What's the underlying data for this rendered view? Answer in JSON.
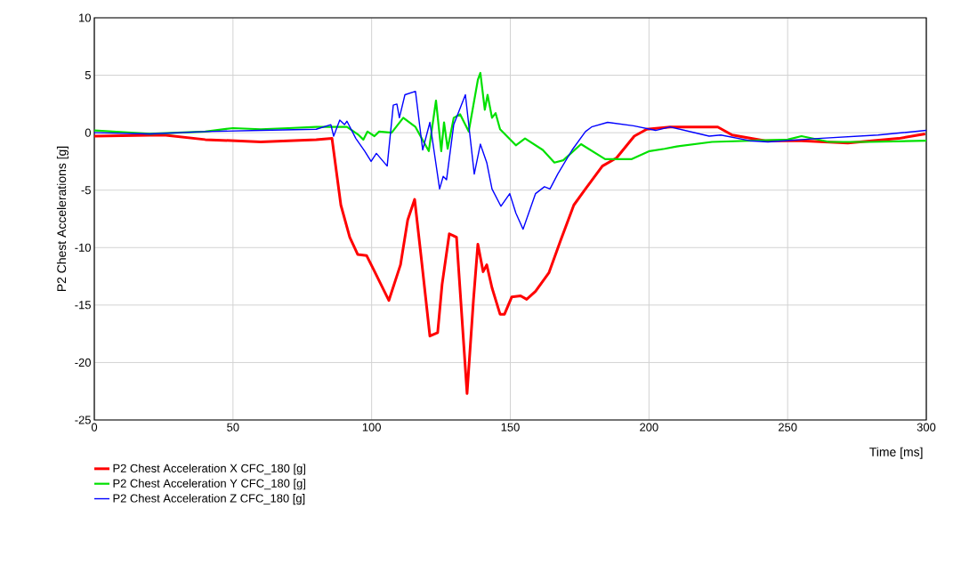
{
  "chart_data": {
    "type": "line",
    "xlabel": "Time [ms]",
    "ylabel": "P2 Chest Accelerations [g]",
    "xlim": [
      0,
      300
    ],
    "ylim": [
      -25,
      10
    ],
    "xticks": [
      0,
      50,
      100,
      150,
      200,
      250,
      300
    ],
    "yticks": [
      -25,
      -20,
      -15,
      -10,
      -5,
      0,
      5,
      10
    ],
    "grid": true,
    "legend": "bottom left",
    "line_style": "solid",
    "marker": "none",
    "series": [
      {
        "name": "P2  Chest Acceleration X CFC_180 [g]",
        "color": "#ff0000",
        "x": [
          0,
          25,
          40,
          60,
          80,
          85.7,
          88.9,
          92.1,
          95,
          98.2,
          100.7,
          106.2,
          110.4,
          113,
          115.5,
          117.8,
          121,
          123.8,
          125.4,
          128,
          130.6,
          134.4,
          136.7,
          138.3,
          140.2,
          141.5,
          143.4,
          146.3,
          147.9,
          150.5,
          153.7,
          155.9,
          159.1,
          163.9,
          168.1,
          172.9,
          176.8,
          183.2,
          188.3,
          194.7,
          199.2,
          207.6,
          224.8,
          230,
          241.9,
          255,
          271.7,
          290,
          299.6
        ],
        "values": [
          -0.3,
          -0.2,
          -0.6,
          -0.8,
          -0.6,
          -0.5,
          -6.3,
          -9.1,
          -10.6,
          -10.7,
          -11.9,
          -14.6,
          -11.5,
          -7.6,
          -5.8,
          -10.7,
          -17.7,
          -17.4,
          -13.2,
          -8.8,
          -9.1,
          -22.7,
          -14.6,
          -9.7,
          -12.1,
          -11.5,
          -13.5,
          -15.8,
          -15.8,
          -14.3,
          -14.2,
          -14.5,
          -13.8,
          -12.2,
          -9.4,
          -6.3,
          -5.0,
          -2.9,
          -2.2,
          -0.3,
          0.3,
          0.5,
          0.5,
          -0.2,
          -0.7,
          -0.7,
          -0.9,
          -0.5,
          -0.1
        ]
      },
      {
        "name": "P2  Chest Acceleration Y CFC_180 [g]",
        "color": "#00e000",
        "x": [
          0,
          20,
          40,
          50,
          60,
          70,
          80,
          86,
          91.1,
          95.3,
          97,
          98.5,
          101,
          102.7,
          107.2,
          111.4,
          115.8,
          120.6,
          123.2,
          125.1,
          126.1,
          127.4,
          129.6,
          131.9,
          135,
          138.3,
          139.2,
          140.8,
          141.8,
          143.4,
          144.7,
          146.3,
          152,
          155.3,
          161.7,
          165.9,
          169.1,
          175.5,
          184.2,
          193.8,
          200.2,
          205.6,
          210,
          222.7,
          250,
          255,
          265,
          280,
          300
        ],
        "values": [
          0.2,
          -0.1,
          0.1,
          0.4,
          0.3,
          0.4,
          0.5,
          0.5,
          0.5,
          -0.2,
          -0.6,
          0.1,
          -0.3,
          0.1,
          0,
          1.3,
          0.5,
          -1.6,
          2.8,
          -1.6,
          0.9,
          -1.4,
          1.3,
          1.6,
          0.1,
          4.6,
          5.2,
          2.0,
          3.3,
          1.3,
          1.7,
          0.3,
          -1.1,
          -0.5,
          -1.5,
          -2.6,
          -2.4,
          -1.0,
          -2.3,
          -2.3,
          -1.6,
          -1.4,
          -1.2,
          -0.8,
          -0.6,
          -0.3,
          -0.8,
          -0.8,
          -0.7
        ]
      },
      {
        "name": "P2  Chest Acceleration Z CFC_180 [g]",
        "color": "#0000ff",
        "x": [
          0,
          20,
          40,
          60,
          80,
          85.3,
          86.3,
          88.5,
          90.2,
          91.1,
          94.3,
          97.5,
          99.8,
          101.7,
          105.6,
          107.8,
          109.1,
          110,
          112,
          115.8,
          118.4,
          121,
          124.5,
          125.8,
          127,
          129.6,
          133.8,
          137,
          139.2,
          141.5,
          143.4,
          146.6,
          149.8,
          152,
          154.6,
          159.1,
          162.3,
          164.3,
          167.1,
          172.3,
          177.1,
          179.3,
          185.1,
          194.4,
          202.4,
          207.6,
          221.7,
          225.9,
          236.4,
          242.9,
          261,
          282.6,
          300
        ],
        "values": [
          0,
          -0.1,
          0.1,
          0.2,
          0.3,
          0.7,
          -0.3,
          1.1,
          0.7,
          1.0,
          -0.5,
          -1.6,
          -2.5,
          -1.8,
          -2.9,
          2.4,
          2.5,
          1.3,
          3.3,
          3.6,
          -1.5,
          0.9,
          -4.9,
          -3.8,
          -4.1,
          0.7,
          3.3,
          -3.6,
          -1.0,
          -2.6,
          -4.9,
          -6.4,
          -5.3,
          -7.0,
          -8.4,
          -5.3,
          -4.7,
          -4.9,
          -3.6,
          -1.5,
          0.1,
          0.5,
          0.9,
          0.6,
          0.2,
          0.5,
          -0.3,
          -0.2,
          -0.7,
          -0.8,
          -0.5,
          -0.2,
          0.2
        ]
      }
    ]
  }
}
